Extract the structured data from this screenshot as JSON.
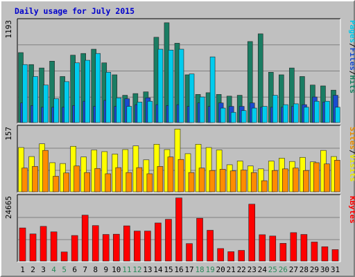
{
  "chart_data": {
    "type": "bar",
    "title": "Daily usage for July 2015",
    "categories": [
      "1",
      "2",
      "3",
      "4",
      "5",
      "6",
      "7",
      "8",
      "9",
      "10",
      "11",
      "12",
      "13",
      "14",
      "15",
      "16",
      "17",
      "18",
      "19",
      "20",
      "21",
      "22",
      "23",
      "24",
      "25",
      "26",
      "27",
      "28",
      "29",
      "30",
      "31"
    ],
    "weekend_days": [
      "4",
      "5",
      "11",
      "12",
      "18",
      "19",
      "25",
      "26"
    ],
    "panels": [
      {
        "id": "hits",
        "ymax_label": "1193",
        "ylim": [
          0,
          1193
        ],
        "legend": [
          {
            "label": "Pages",
            "color": "#00c8e8"
          },
          {
            "label": "/",
            "color": "#000000"
          },
          {
            "label": "Files",
            "color": "#1a4ccf"
          },
          {
            "label": "/",
            "color": "#000000"
          },
          {
            "label": "Hits",
            "color": "#1a8060"
          }
        ],
        "series": [
          {
            "name": "Hits",
            "color": "#1a7d63",
            "values": [
              820,
              680,
              640,
              720,
              540,
              790,
              810,
              860,
              700,
              560,
              320,
              340,
              360,
              1000,
              1170,
              930,
              560,
              330,
              350,
              330,
              310,
              320,
              950,
              1040,
              590,
              560,
              640,
              540,
              440,
              430,
              380
            ]
          },
          {
            "name": "Files",
            "color": "#1a4ccf",
            "values": [
              230,
              200,
              180,
              180,
              180,
              200,
              250,
              190,
              260,
              190,
              280,
              210,
              290,
              210,
              200,
              210,
              190,
              230,
              190,
              230,
              190,
              190,
              230,
              180,
              180,
              180,
              190,
              210,
              300,
              240,
              320
            ]
          },
          {
            "name": "Pages",
            "color": "#00ccee",
            "values": [
              680,
              540,
              440,
              280,
              480,
              700,
              730,
              810,
              590,
              290,
              190,
              240,
              250,
              860,
              850,
              860,
              570,
              300,
              770,
              170,
              120,
              140,
              170,
              190,
              320,
              210,
              220,
              180,
              250,
              250,
              180
            ]
          }
        ]
      },
      {
        "id": "visits",
        "ymax_label": "157",
        "ylim": [
          0,
          157
        ],
        "legend": [
          {
            "label": "Sites",
            "color": "#e88a00"
          },
          {
            "label": "/",
            "color": "#000000"
          },
          {
            "label": "Visits",
            "color": "#e8e800"
          }
        ],
        "series": [
          {
            "name": "Visits",
            "color": "#ffff00",
            "values": [
              108,
              86,
              117,
              71,
              69,
              111,
              85,
              102,
              98,
              92,
              103,
              112,
              78,
              116,
              103,
              153,
              93,
              116,
              108,
              102,
              66,
              75,
              63,
              56,
              75,
              82,
              74,
              84,
              73,
              101,
              86
            ]
          },
          {
            "name": "Sites",
            "color": "#ff8c00",
            "values": [
              58,
              62,
              101,
              38,
              46,
              63,
              47,
              57,
              44,
              59,
              47,
              59,
              44,
              62,
              85,
              79,
              47,
              58,
              52,
              55,
              51,
              53,
              47,
              27,
              52,
              56,
              58,
              52,
              71,
              68,
              77
            ]
          }
        ]
      },
      {
        "id": "kbytes",
        "ymax_label": "24665",
        "ylim": [
          0,
          24665
        ],
        "legend": [
          {
            "label": "KBytes",
            "color": "#ff0000"
          }
        ],
        "series": [
          {
            "name": "KBytes",
            "color": "#ff0000",
            "values": [
              12700,
              10400,
              13300,
              11200,
              3500,
              9800,
              17600,
              13600,
              10200,
              10300,
              13500,
              11500,
              11500,
              14600,
              16000,
              24200,
              6700,
              16400,
              11800,
              4800,
              3600,
              4100,
              21800,
              10100,
              9600,
              6800,
              10900,
              10200,
              7300,
              5500,
              4400
            ]
          }
        ]
      }
    ],
    "colors": {
      "plot_bg": "#c0c0c0",
      "grid": "#808080",
      "title": "#0000cc",
      "weekday_label": "#000000",
      "weekend_label": "#2a8a5a"
    }
  }
}
